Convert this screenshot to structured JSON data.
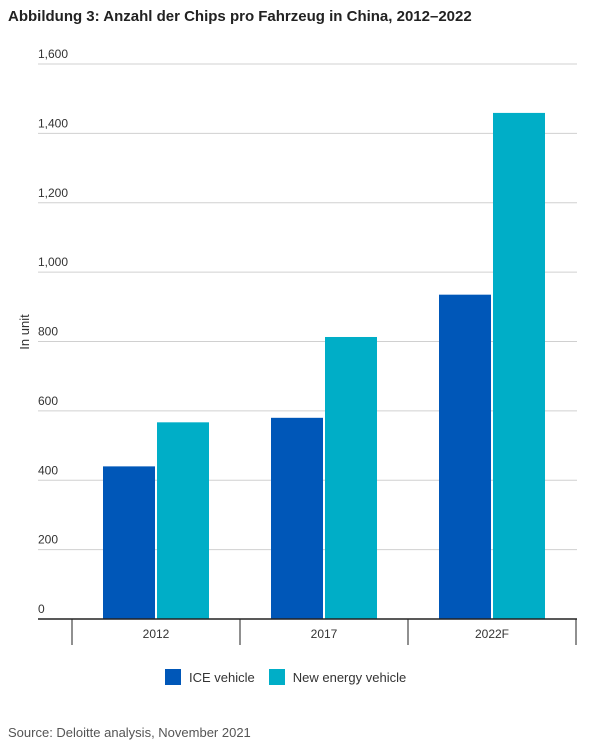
{
  "title": "Abbildung 3: Anzahl der Chips pro Fahrzeug in China, 2012–2022",
  "source": "Source: Deloitte analysis, November 2021",
  "colors": {
    "ice": "#0057b8",
    "nev": "#00aec7",
    "grid": "#d0d0d0",
    "axis": "#222222",
    "text": "#333333"
  },
  "chart_data": {
    "type": "bar",
    "title": "Abbildung 3: Anzahl der Chips pro Fahrzeug in China, 2012–2022",
    "xlabel": "",
    "ylabel": "In unit",
    "ylim": [
      0,
      1600
    ],
    "yticks": [
      0,
      200,
      400,
      600,
      800,
      1000,
      1200,
      1400,
      1600
    ],
    "ytick_labels": [
      "0",
      "200",
      "400",
      "600",
      "800",
      "1,000",
      "1,200",
      "1,400",
      "1,600"
    ],
    "categories": [
      "2012",
      "2017",
      "2022F"
    ],
    "series": [
      {
        "name": "ICE vehicle",
        "values": [
          440,
          580,
          935
        ]
      },
      {
        "name": "New energy vehicle",
        "values": [
          567,
          813,
          1459
        ]
      }
    ],
    "grid": true,
    "legend": "bottom"
  }
}
